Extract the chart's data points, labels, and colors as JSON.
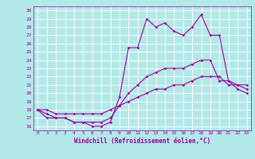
{
  "xlabel": "Windchill (Refroidissement éolien,°C)",
  "bg_color": "#b2e8e8",
  "grid_color": "#ffffff",
  "line_color": "#990099",
  "xlim": [
    -0.5,
    23.5
  ],
  "ylim": [
    15.5,
    30.5
  ],
  "xticks": [
    0,
    1,
    2,
    3,
    4,
    5,
    6,
    7,
    8,
    9,
    10,
    11,
    12,
    13,
    14,
    15,
    16,
    17,
    18,
    19,
    20,
    21,
    22,
    23
  ],
  "yticks": [
    16,
    17,
    18,
    19,
    20,
    21,
    22,
    23,
    24,
    25,
    26,
    27,
    28,
    29,
    30
  ],
  "line1_x": [
    0,
    1,
    2,
    3,
    4,
    5,
    6,
    7,
    8,
    9,
    10,
    11,
    12,
    13,
    14,
    15,
    16,
    17,
    18,
    19,
    20,
    21,
    22,
    23
  ],
  "line1_y": [
    18,
    17,
    17,
    17,
    16.5,
    16.5,
    16,
    16,
    16.5,
    19.5,
    25.5,
    25.5,
    29,
    28,
    28.5,
    27.5,
    27,
    28,
    29.5,
    27,
    27,
    21.5,
    20.5,
    20
  ],
  "line2_x": [
    0,
    1,
    2,
    3,
    4,
    5,
    6,
    7,
    8,
    9,
    10,
    11,
    12,
    13,
    14,
    15,
    16,
    17,
    18,
    19,
    20,
    21,
    22,
    23
  ],
  "line2_y": [
    18,
    17.5,
    17,
    17,
    16.5,
    16.5,
    16.5,
    16.5,
    17,
    18.5,
    20,
    21,
    22,
    22.5,
    23,
    23,
    23,
    23.5,
    24,
    24,
    21.5,
    21.5,
    21,
    20.5
  ],
  "line3_x": [
    0,
    1,
    2,
    3,
    4,
    5,
    6,
    7,
    8,
    9,
    10,
    11,
    12,
    13,
    14,
    15,
    16,
    17,
    18,
    19,
    20,
    21,
    22,
    23
  ],
  "line3_y": [
    18,
    18,
    17.5,
    17.5,
    17.5,
    17.5,
    17.5,
    17.5,
    18,
    18.5,
    19,
    19.5,
    20,
    20.5,
    20.5,
    21,
    21,
    21.5,
    22,
    22,
    22,
    21,
    21,
    21
  ]
}
